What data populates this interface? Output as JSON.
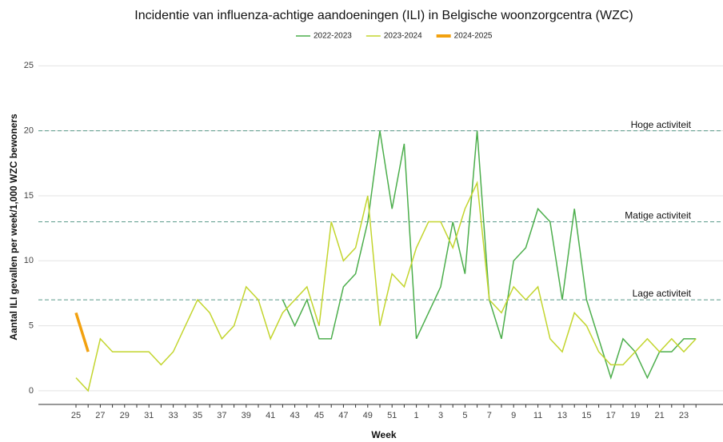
{
  "chart_data": {
    "type": "line",
    "title": "Incidentie van influenza-achtige aandoeningen (ILI) in Belgische woonzorgcentra (WZC)",
    "x_label": "Week",
    "y_label": "Aantal ILI gevallen per week/1,000 WZC bewoners",
    "categories": [
      "25",
      null,
      "27",
      null,
      "29",
      null,
      "31",
      null,
      "33",
      null,
      "35",
      null,
      "37",
      null,
      "39",
      null,
      "41",
      null,
      "43",
      null,
      "45",
      null,
      "47",
      null,
      "49",
      null,
      "51",
      null,
      "1",
      null,
      "3",
      null,
      "5",
      null,
      "7",
      null,
      "9",
      null,
      "11",
      null,
      "13",
      null,
      "15",
      null,
      "17",
      null,
      "19",
      null,
      "21",
      null,
      "23",
      null
    ],
    "series": [
      {
        "name": "2022-2023",
        "color": "#4cae4c",
        "values": [
          null,
          null,
          null,
          null,
          null,
          null,
          null,
          null,
          null,
          null,
          null,
          null,
          null,
          null,
          null,
          null,
          null,
          7,
          5,
          7,
          4,
          4,
          8,
          9,
          13,
          20,
          14,
          19,
          4,
          6,
          8,
          13,
          9,
          20,
          7,
          4,
          10,
          11,
          14,
          13,
          7,
          14,
          7,
          4,
          1,
          4,
          3,
          1,
          3,
          3,
          4,
          4
        ]
      },
      {
        "name": "2023-2024",
        "color": "#c3d52e",
        "values": [
          1,
          0,
          4,
          3,
          3,
          3,
          3,
          2,
          3,
          5,
          7,
          6,
          4,
          5,
          8,
          7,
          4,
          6,
          7,
          8,
          5,
          13,
          10,
          11,
          15,
          5,
          9,
          8,
          11,
          13,
          13,
          11,
          14,
          16,
          7,
          6,
          8,
          7,
          8,
          4,
          3,
          6,
          5,
          3,
          2,
          2,
          3,
          4,
          3,
          4,
          3,
          4
        ]
      },
      {
        "name": "2024-2025",
        "color": "#f2a10f",
        "values": [
          6,
          3,
          null,
          null,
          null,
          null,
          null,
          null,
          null,
          null,
          null,
          null,
          null,
          null,
          null,
          null,
          null,
          null,
          null,
          null,
          null,
          null,
          null,
          null,
          null,
          null,
          null,
          null,
          null,
          null,
          null,
          null,
          null,
          null,
          null,
          null,
          null,
          null,
          null,
          null,
          null,
          null,
          null,
          null,
          null,
          null,
          null,
          null,
          null,
          null,
          null,
          null
        ]
      }
    ],
    "thresholds": [
      {
        "value": 20,
        "label": "Hoge activiteit"
      },
      {
        "value": 13,
        "label": "Matige activiteit"
      },
      {
        "value": 7,
        "label": "Lage activiteit"
      }
    ],
    "threshold_color": "#5b9a8b",
    "ylim": [
      -1.05,
      26.25
    ],
    "yticks": [
      0,
      5,
      10,
      15,
      20,
      25
    ],
    "grid": true,
    "legend": "top"
  }
}
